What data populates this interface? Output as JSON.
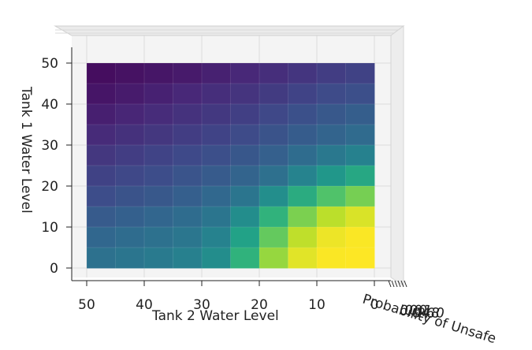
{
  "chart_data": {
    "type": "surface3d",
    "title": "",
    "xlabel": "Tank 2 Water Level",
    "ylabel": "Tank 1 Water Level",
    "zlabel": "Probability of Unsafe",
    "x_ticks": [
      "50",
      "40",
      "30",
      "20",
      "10",
      "0"
    ],
    "y_ticks": [
      "0",
      "10",
      "20",
      "30",
      "40",
      "50"
    ],
    "z_ticks": [
      "0.0",
      "0.2",
      "0.4",
      "0.6",
      "0.8",
      "1.0"
    ],
    "xlim": [
      0,
      50
    ],
    "ylim": [
      0,
      50
    ],
    "zlim": [
      0,
      1
    ],
    "colormap": "viridis",
    "grid": true,
    "view": "top-down",
    "tank2_level": [
      50,
      45,
      40,
      35,
      30,
      25,
      20,
      15,
      10,
      5,
      0
    ],
    "tank1_level": [
      50,
      45,
      40,
      35,
      30,
      25,
      20,
      15,
      10,
      5,
      0
    ],
    "probability_unsafe": [
      [
        0.02,
        0.03,
        0.04,
        0.05,
        0.06,
        0.08,
        0.1,
        0.12,
        0.15,
        0.17,
        0.18
      ],
      [
        0.04,
        0.05,
        0.07,
        0.08,
        0.1,
        0.12,
        0.14,
        0.16,
        0.19,
        0.21,
        0.22
      ],
      [
        0.06,
        0.08,
        0.1,
        0.12,
        0.14,
        0.16,
        0.18,
        0.21,
        0.24,
        0.26,
        0.28
      ],
      [
        0.09,
        0.11,
        0.13,
        0.15,
        0.17,
        0.19,
        0.22,
        0.25,
        0.28,
        0.31,
        0.33
      ],
      [
        0.13,
        0.15,
        0.17,
        0.19,
        0.21,
        0.23,
        0.26,
        0.29,
        0.33,
        0.36,
        0.38
      ],
      [
        0.17,
        0.19,
        0.21,
        0.23,
        0.25,
        0.28,
        0.31,
        0.35,
        0.44,
        0.47,
        0.55
      ],
      [
        0.2,
        0.22,
        0.24,
        0.26,
        0.29,
        0.32,
        0.36,
        0.45,
        0.55,
        0.65,
        0.72
      ],
      [
        0.25,
        0.27,
        0.29,
        0.31,
        0.34,
        0.38,
        0.5,
        0.66,
        0.8,
        0.88,
        0.92
      ],
      [
        0.3,
        0.32,
        0.34,
        0.36,
        0.39,
        0.45,
        0.62,
        0.8,
        0.94,
        0.98,
        1.0
      ],
      [
        0.34,
        0.36,
        0.38,
        0.4,
        0.43,
        0.5,
        0.72,
        0.9,
        0.98,
        1.0,
        1.0
      ],
      [
        0.38,
        0.4,
        0.42,
        0.44,
        0.47,
        0.55,
        0.8,
        0.95,
        1.0,
        1.0,
        1.0
      ]
    ]
  }
}
